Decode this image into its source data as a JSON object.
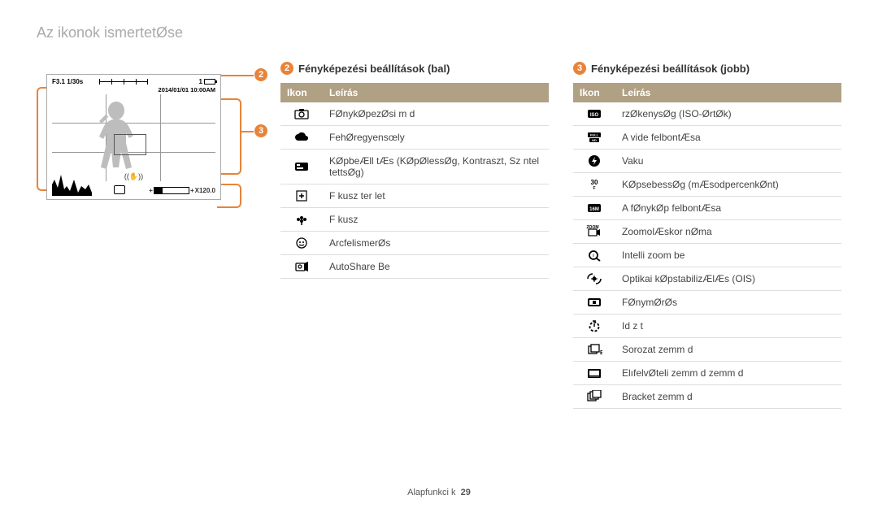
{
  "title": "Az ikonok ismertetØse",
  "footer": {
    "text": "Alapfunkci k",
    "page": "29"
  },
  "accent": "#e8833a",
  "header_bg": "#b0a084",
  "callouts": {
    "n2": "2",
    "n3": "3"
  },
  "screen": {
    "fstop": "F3.1 1/30s",
    "count": "1",
    "date": "2014/01/01 10:00AM",
    "zoom": "X120.0"
  },
  "left": {
    "title": "Fényképezési beállítások (bal)",
    "th1": "Ikon",
    "th2": "Leírás",
    "rows": [
      {
        "icon": "mode",
        "desc": "FØnykØpezØsi m d"
      },
      {
        "icon": "cloud",
        "desc": "FehØregyensœly"
      },
      {
        "icon": "meter",
        "desc": "KØpbeÆll tÆs (KØpØlessØg, Kontraszt, Sz ntel tettsØg)"
      },
      {
        "icon": "plus",
        "desc": "F kusz ter let"
      },
      {
        "icon": "flower",
        "desc": "F kusz"
      },
      {
        "icon": "face",
        "desc": "ArcfelismerØs"
      },
      {
        "icon": "share",
        "desc": "AutoShare Be"
      }
    ]
  },
  "right": {
    "title": "Fényképezési beállítások (jobb)",
    "th1": "Ikon",
    "th2": "Leírás",
    "rows": [
      {
        "icon": "iso",
        "desc": "rzØkenysØg (ISO-ØrtØk)"
      },
      {
        "icon": "fullhd",
        "desc": "A vide  felbontÆsa"
      },
      {
        "icon": "flash",
        "desc": "Vaku"
      },
      {
        "icon": "fps",
        "desc": "KØpsebessØg (mÆsodpercenkØnt)"
      },
      {
        "icon": "res",
        "desc": "A fØnykØp felbontÆsa"
      },
      {
        "icon": "zoom",
        "desc": "ZoomolÆskor nØma"
      },
      {
        "icon": "izoom",
        "desc": "Intelli zoom be"
      },
      {
        "icon": "ois",
        "desc": "Optikai kØpstabilizÆlÆs (OIS)"
      },
      {
        "icon": "ev",
        "desc": "FØnymØrØs"
      },
      {
        "icon": "timer",
        "desc": "Id z t"
      },
      {
        "icon": "burst",
        "desc": "Sorozat  zemm d"
      },
      {
        "icon": "live",
        "desc": "ElıfelvØteli  zemm d  zemm d"
      },
      {
        "icon": "bracket",
        "desc": "Bracket  zemm d"
      }
    ]
  }
}
